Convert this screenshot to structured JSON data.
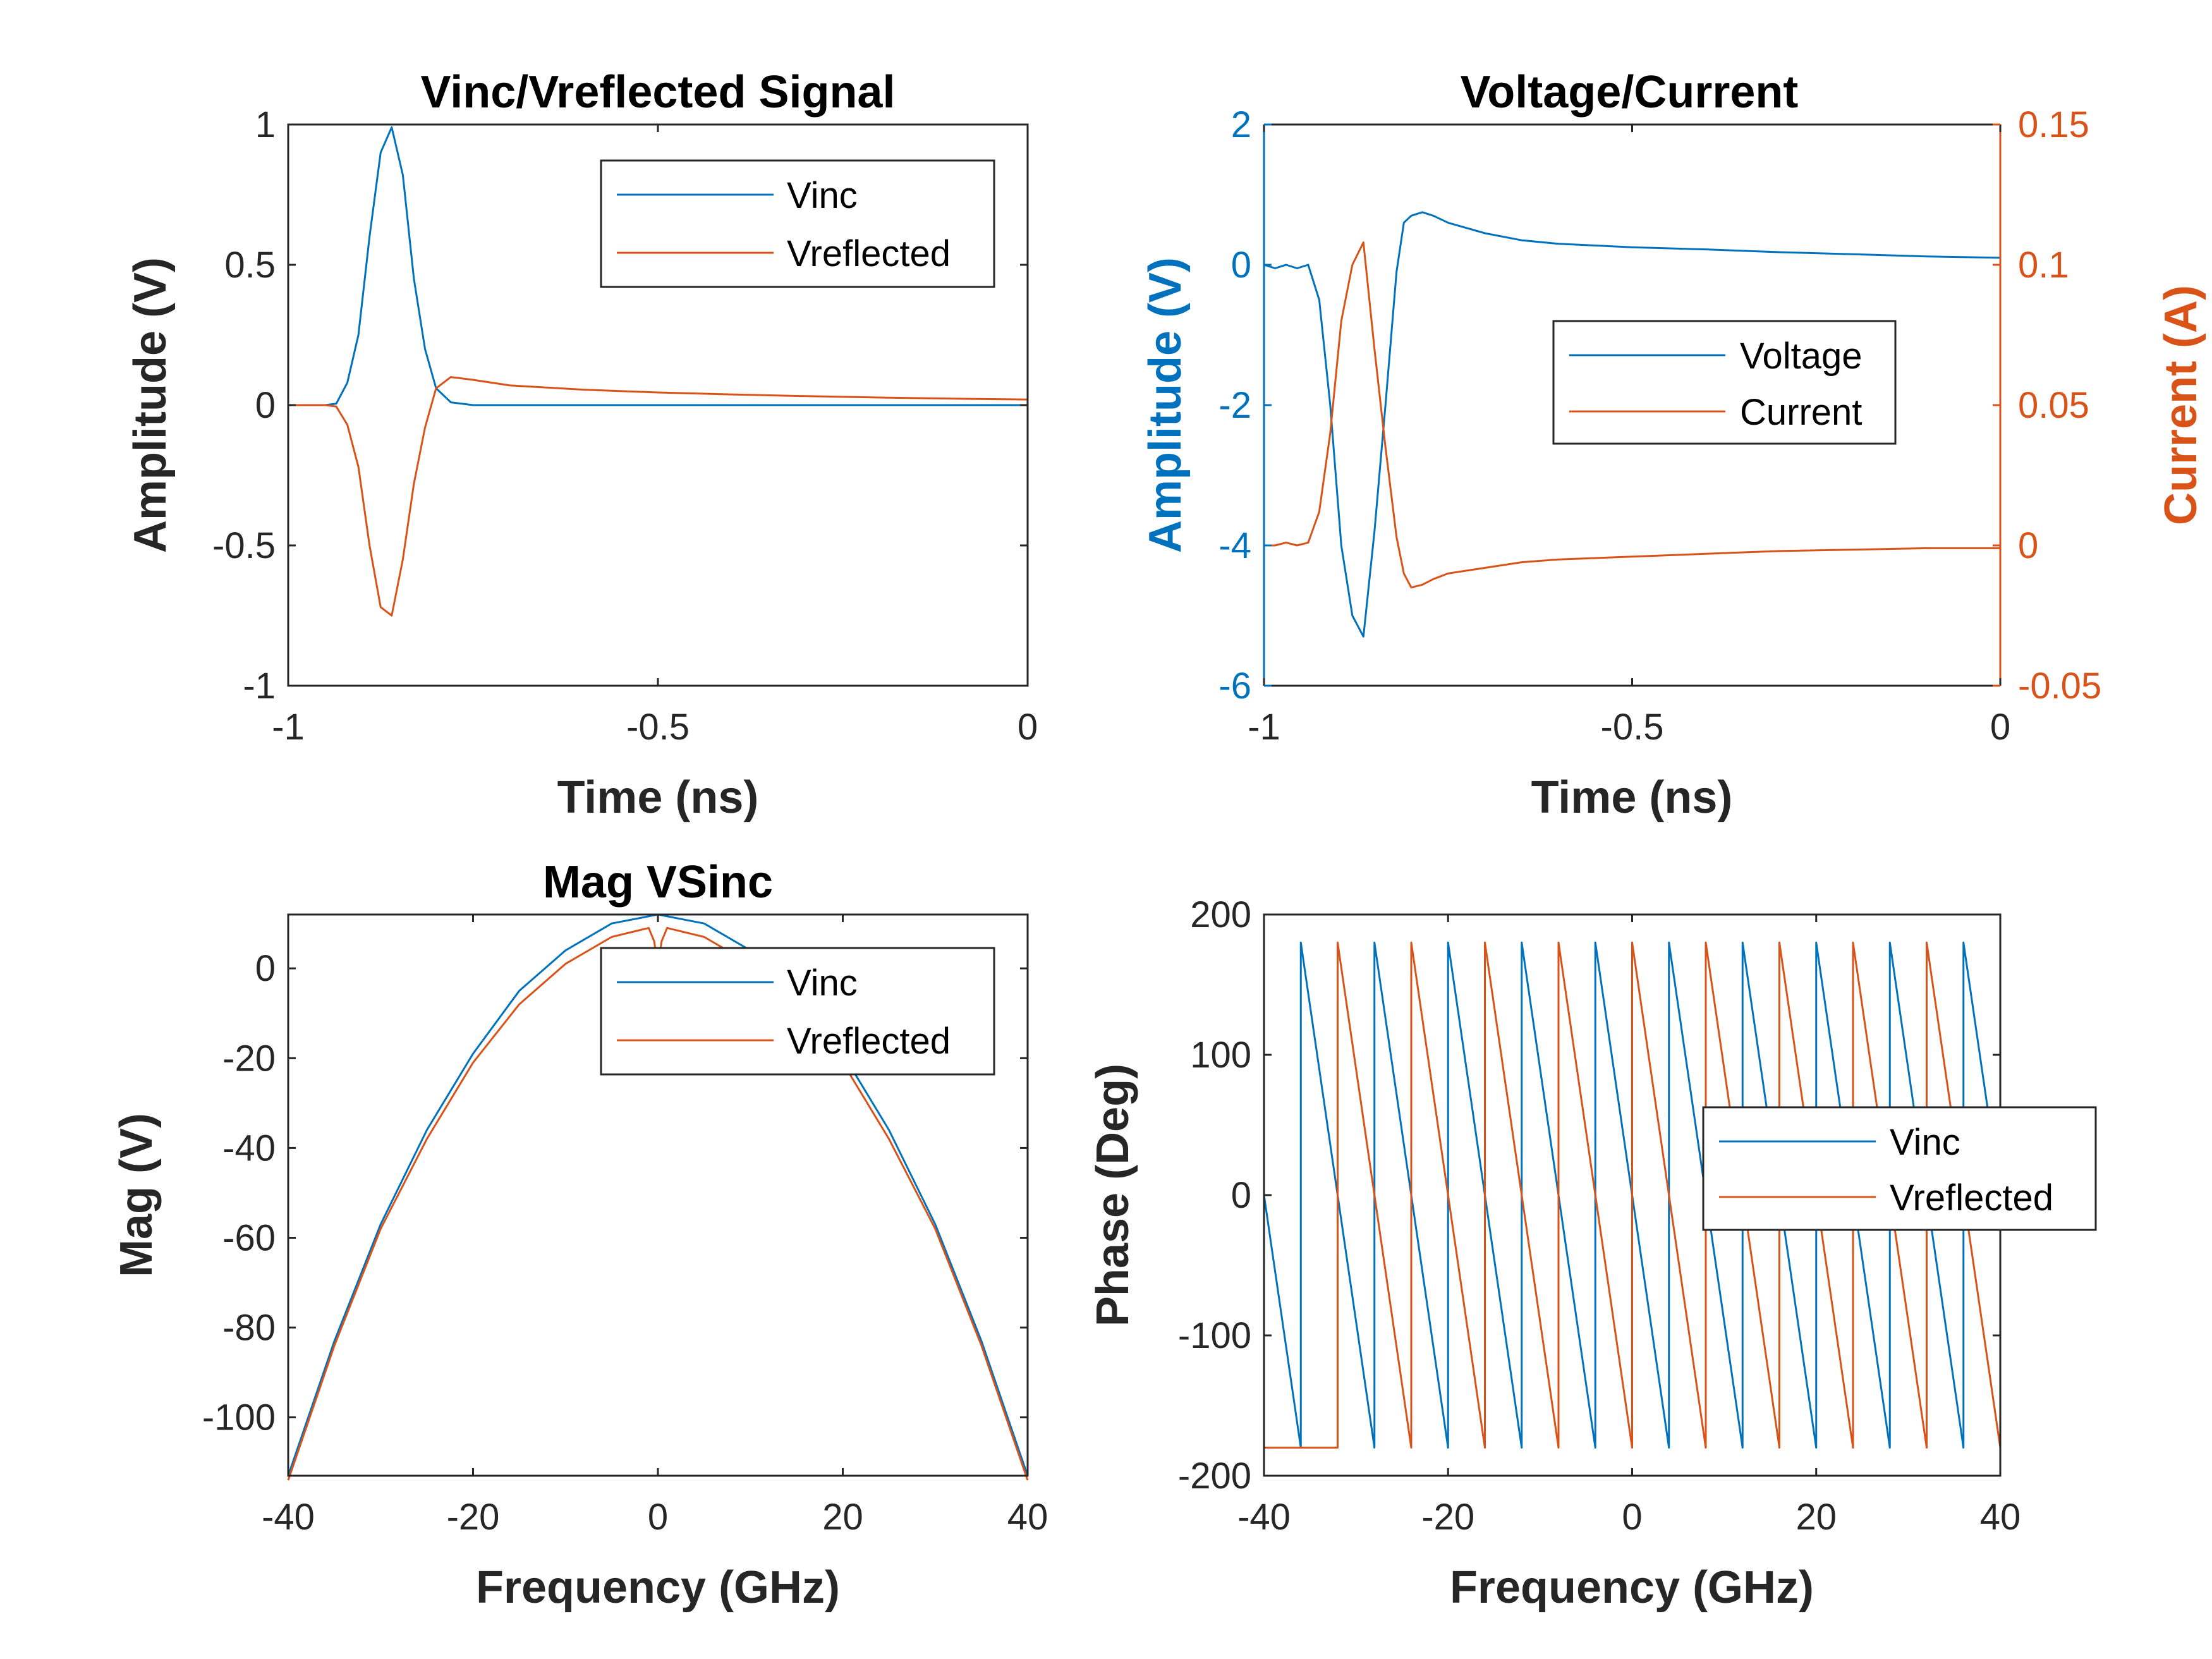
{
  "colors": {
    "blue": "#0072BD",
    "orange": "#D95319",
    "axis": "#262626"
  },
  "chart_data": [
    {
      "type": "line",
      "title": "Vinc/Vreflected Signal",
      "xlabel": "Time (ns)",
      "ylabel": "Amplitude (V)",
      "xlim": [
        -1,
        0
      ],
      "ylim": [
        -1,
        1
      ],
      "xticks": [
        -1,
        -0.5,
        0
      ],
      "xtick_labels": [
        "-1",
        "-0.5",
        "0"
      ],
      "yticks": [
        -1,
        -0.5,
        0,
        0.5,
        1
      ],
      "ytick_labels": [
        "-1",
        "-0.5",
        "0",
        "0.5",
        "1"
      ],
      "legend": {
        "position": "top-right"
      },
      "series": [
        {
          "name": "Vinc",
          "color": "#0072BD",
          "x": [
            -1,
            -0.95,
            -0.935,
            -0.92,
            -0.905,
            -0.89,
            -0.875,
            -0.86,
            -0.845,
            -0.83,
            -0.815,
            -0.8,
            -0.78,
            -0.75,
            -0.5,
            -0.25,
            0
          ],
          "y": [
            0,
            0,
            0.005,
            0.08,
            0.25,
            0.6,
            0.9,
            0.99,
            0.82,
            0.45,
            0.2,
            0.06,
            0.01,
            0,
            0,
            0,
            0
          ]
        },
        {
          "name": "Vreflected",
          "color": "#D95319",
          "x": [
            -1,
            -0.95,
            -0.935,
            -0.92,
            -0.905,
            -0.89,
            -0.875,
            -0.86,
            -0.845,
            -0.83,
            -0.815,
            -0.8,
            -0.78,
            -0.75,
            -0.7,
            -0.6,
            -0.5,
            -0.4,
            -0.3,
            -0.2,
            -0.1,
            0
          ],
          "y": [
            0,
            0,
            -0.005,
            -0.07,
            -0.22,
            -0.5,
            -0.72,
            -0.75,
            -0.55,
            -0.28,
            -0.08,
            0.06,
            0.1,
            0.09,
            0.07,
            0.055,
            0.045,
            0.038,
            0.032,
            0.027,
            0.023,
            0.02
          ]
        }
      ]
    },
    {
      "type": "line",
      "title": "Voltage/Current",
      "xlabel": "Time (ns)",
      "ylabel": "Amplitude (V)",
      "ylabel_right": "Current (A)",
      "xlim": [
        -1,
        0
      ],
      "ylim": [
        -6,
        2
      ],
      "ylim_right": [
        -0.05,
        0.15
      ],
      "xticks": [
        -1,
        -0.5,
        0
      ],
      "xtick_labels": [
        "-1",
        "-0.5",
        "0"
      ],
      "yticks": [
        -6,
        -4,
        -2,
        0,
        2
      ],
      "ytick_labels": [
        "-6",
        "-4",
        "-2",
        "0",
        "2"
      ],
      "yticks_right": [
        -0.05,
        0,
        0.05,
        0.1,
        0.15
      ],
      "ytick_labels_right": [
        "-0.05",
        "0",
        "0.05",
        "0.1",
        "0.15"
      ],
      "legend": {
        "position": "center-right"
      },
      "series": [
        {
          "name": "Voltage",
          "color": "#0072BD",
          "axis": "left",
          "x": [
            -1,
            -0.985,
            -0.97,
            -0.955,
            -0.94,
            -0.925,
            -0.91,
            -0.895,
            -0.88,
            -0.865,
            -0.85,
            -0.835,
            -0.82,
            -0.81,
            -0.8,
            -0.785,
            -0.77,
            -0.75,
            -0.7,
            -0.65,
            -0.6,
            -0.5,
            -0.4,
            -0.3,
            -0.2,
            -0.1,
            0
          ],
          "y": [
            0,
            -0.05,
            0,
            -0.05,
            0,
            -0.5,
            -2,
            -4,
            -5,
            -5.3,
            -3.8,
            -2,
            -0.1,
            0.6,
            0.7,
            0.75,
            0.7,
            0.6,
            0.45,
            0.35,
            0.3,
            0.25,
            0.22,
            0.18,
            0.15,
            0.12,
            0.1
          ]
        },
        {
          "name": "Current",
          "color": "#D95319",
          "axis": "right",
          "x": [
            -1,
            -0.985,
            -0.97,
            -0.955,
            -0.94,
            -0.925,
            -0.91,
            -0.895,
            -0.88,
            -0.865,
            -0.85,
            -0.835,
            -0.82,
            -0.81,
            -0.8,
            -0.785,
            -0.77,
            -0.75,
            -0.7,
            -0.65,
            -0.6,
            -0.5,
            -0.4,
            -0.3,
            -0.2,
            -0.1,
            0
          ],
          "y": [
            0,
            0,
            0.001,
            0,
            0.001,
            0.012,
            0.04,
            0.08,
            0.1,
            0.108,
            0.07,
            0.035,
            0.003,
            -0.01,
            -0.015,
            -0.014,
            -0.012,
            -0.01,
            -0.008,
            -0.006,
            -0.005,
            -0.004,
            -0.003,
            -0.002,
            -0.0015,
            -0.001,
            -0.001
          ]
        }
      ]
    },
    {
      "type": "line",
      "title": "Mag VSinc",
      "xlabel": "Frequency (GHz)",
      "ylabel": "Mag (V)",
      "xlim": [
        -40,
        40
      ],
      "ylim": [
        -113,
        12
      ],
      "xticks": [
        -40,
        -20,
        0,
        20,
        40
      ],
      "xtick_labels": [
        "-40",
        "-20",
        "0",
        "20",
        "40"
      ],
      "yticks": [
        -100,
        -80,
        -60,
        -40,
        -20,
        0
      ],
      "ytick_labels": [
        "-100",
        "-80",
        "-60",
        "-40",
        "-20",
        "0"
      ],
      "legend": {
        "position": "top-right"
      },
      "series": [
        {
          "name": "Vinc",
          "color": "#0072BD",
          "x": [
            -40,
            -35,
            -30,
            -25,
            -20,
            -15,
            -10,
            -5,
            0,
            5,
            10,
            15,
            20,
            25,
            30,
            35,
            40
          ],
          "y": [
            -113,
            -83,
            -57,
            -36,
            -19,
            -5,
            4,
            10,
            12,
            10,
            4,
            -5,
            -19,
            -36,
            -57,
            -83,
            -113
          ]
        },
        {
          "name": "Vreflected",
          "color": "#D95319",
          "x": [
            -40,
            -35,
            -30,
            -25,
            -20,
            -15,
            -10,
            -5,
            -1,
            -0.4,
            0,
            0.4,
            1,
            5,
            10,
            15,
            20,
            25,
            30,
            35,
            40
          ],
          "y": [
            -114,
            -84,
            -58,
            -38,
            -21,
            -8,
            1,
            7,
            9,
            6,
            0,
            6,
            9,
            7,
            1,
            -8,
            -21,
            -38,
            -58,
            -84,
            -114
          ]
        }
      ]
    },
    {
      "type": "line",
      "title": "",
      "xlabel": "Frequency (GHz)",
      "ylabel": "Phase (Deg)",
      "xlim": [
        -40,
        40
      ],
      "ylim": [
        -200,
        200
      ],
      "xticks": [
        -40,
        -20,
        0,
        20,
        40
      ],
      "xtick_labels": [
        "-40",
        "-20",
        "0",
        "20",
        "40"
      ],
      "yticks": [
        -200,
        -100,
        0,
        100,
        200
      ],
      "ytick_labels": [
        "-200",
        "-100",
        "0",
        "100",
        "200"
      ],
      "legend": {
        "position": "center-right"
      },
      "series": [
        {
          "name": "Vinc",
          "color": "#0072BD",
          "pattern": "sawtooth",
          "phase_at_zero": 0,
          "period_ghz": 8,
          "range_deg": [
            -180,
            180
          ]
        },
        {
          "name": "Vreflected",
          "color": "#D95319",
          "pattern": "sawtooth",
          "phase_at_zero": 180,
          "period_ghz": 8,
          "range_deg": [
            -180,
            180
          ]
        }
      ]
    }
  ]
}
